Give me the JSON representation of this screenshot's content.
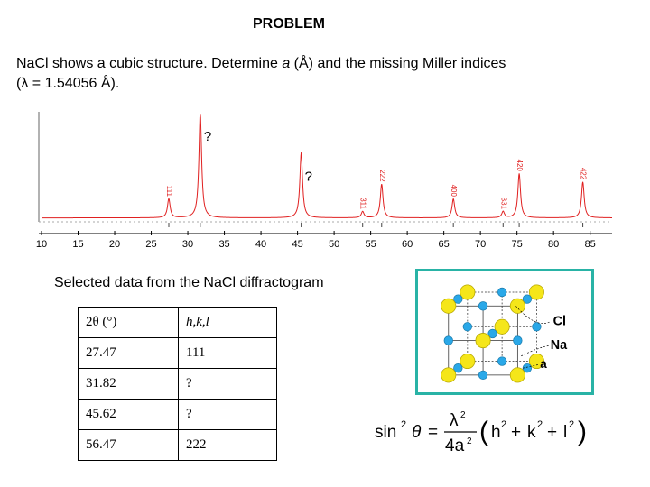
{
  "title": "PROBLEM",
  "statement": {
    "line1_a": "NaCl shows a cubic structure. Determine ",
    "line1_var": "a",
    "line1_b": " (Å) and the missing Miller indices",
    "line2": "(λ = 1.54056 Å)."
  },
  "chart_data": {
    "type": "line",
    "xlabel": "",
    "ylabel": "",
    "xlim": [
      10,
      88
    ],
    "x_ticks": [
      "10",
      "15",
      "20",
      "25",
      "30",
      "35",
      "40",
      "45",
      "50",
      "55",
      "60",
      "65",
      "70",
      "75",
      "80",
      "85"
    ],
    "series": [
      {
        "peaks": [
          {
            "two_theta": 27.4,
            "height": 0.18,
            "label": "111"
          },
          {
            "two_theta": 31.7,
            "height": 1.0,
            "label": "?"
          },
          {
            "two_theta": 45.5,
            "height": 0.62,
            "label": "?"
          },
          {
            "two_theta": 53.9,
            "height": 0.06,
            "label": "311"
          },
          {
            "two_theta": 56.5,
            "height": 0.32,
            "label": "222"
          },
          {
            "two_theta": 66.3,
            "height": 0.18,
            "label": "400"
          },
          {
            "two_theta": 73.1,
            "height": 0.06,
            "label": "331"
          },
          {
            "two_theta": 75.3,
            "height": 0.42,
            "label": "420"
          },
          {
            "two_theta": 84.0,
            "height": 0.34,
            "label": "422"
          }
        ]
      }
    ]
  },
  "caption": "Selected data from the NaCl diffractogram",
  "table": {
    "headers": [
      "2θ (°)",
      "h,k,l"
    ],
    "rows": [
      [
        "27.47",
        "111"
      ],
      [
        "31.82",
        "?"
      ],
      [
        "45.62",
        "?"
      ],
      [
        "56.47",
        "222"
      ]
    ]
  },
  "structure_labels": {
    "cl": "Cl",
    "na": "Na",
    "a": "a"
  },
  "colors": {
    "pattern": "#e02020",
    "cl": "#f5e61a",
    "na": "#2aa8e8",
    "border": "#29b3a6"
  },
  "formula": {
    "lhs": "sin",
    "exp2": "2",
    "theta": "θ",
    "eq": "=",
    "lambda": "λ",
    "four_a": "4a",
    "rhs_open": "(",
    "h": "h",
    "k": "k",
    "l": "l",
    "plus": "+",
    "rhs_close": ")"
  }
}
